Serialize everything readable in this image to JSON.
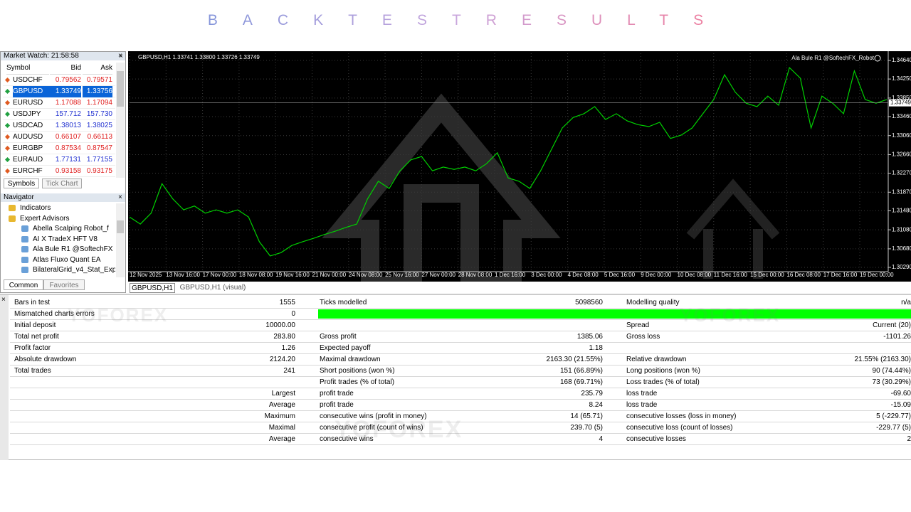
{
  "title": "BACKTESTRESULTS",
  "watermark": "YOFOREX",
  "market_watch": {
    "title": "Market Watch: 21:58:58",
    "columns": [
      "Symbol",
      "Bid",
      "Ask"
    ],
    "selected": 1,
    "rows": [
      {
        "symbol": "USDCHF",
        "bid": "0.79562",
        "ask": "0.79571",
        "color": "#e02020"
      },
      {
        "symbol": "GBPUSD",
        "bid": "1.33749",
        "ask": "1.33756",
        "color": "#2030d0"
      },
      {
        "symbol": "EURUSD",
        "bid": "1.17088",
        "ask": "1.17094",
        "color": "#e02020"
      },
      {
        "symbol": "USDJPY",
        "bid": "157.712",
        "ask": "157.730",
        "color": "#2030d0"
      },
      {
        "symbol": "USDCAD",
        "bid": "1.38013",
        "ask": "1.38025",
        "color": "#2030d0"
      },
      {
        "symbol": "AUDUSD",
        "bid": "0.66107",
        "ask": "0.66113",
        "color": "#e02020"
      },
      {
        "symbol": "EURGBP",
        "bid": "0.87534",
        "ask": "0.87547",
        "color": "#e02020"
      },
      {
        "symbol": "EURAUD",
        "bid": "1.77131",
        "ask": "1.77155",
        "color": "#2030d0"
      },
      {
        "symbol": "EURCHF",
        "bid": "0.93158",
        "ask": "0.93175",
        "color": "#e02020"
      }
    ],
    "tabs": [
      "Symbols",
      "Tick Chart"
    ]
  },
  "navigator": {
    "title": "Navigator",
    "items": [
      {
        "label": "Indicators",
        "level": 1
      },
      {
        "label": "Expert Advisors",
        "level": 1
      },
      {
        "label": "Abella Scalping Robot_f",
        "level": 2
      },
      {
        "label": "AI X TradeX HFT V8",
        "level": 2
      },
      {
        "label": "Ala Bule R1 @SoftechFX",
        "level": 2
      },
      {
        "label": "Atlas Fluxo Quant EA",
        "level": 2
      },
      {
        "label": "BilateralGrid_v4_Stat_Exp",
        "level": 2
      }
    ],
    "tabs": [
      "Common",
      "Favorites"
    ]
  },
  "chart": {
    "type": "line",
    "header": "GBPUSD,H1  1.33741 1.33800 1.33726 1.33749",
    "expert": "Ala Bule R1 @SoftechFX_Robot",
    "color": "#00d000",
    "values": [
      1.3135,
      1.312,
      1.3143,
      1.3205,
      1.3173,
      1.315,
      1.3158,
      1.3143,
      1.315,
      1.3143,
      1.315,
      1.3135,
      1.3083,
      1.3053,
      1.306,
      1.3075,
      1.3083,
      1.309,
      1.3098,
      1.3105,
      1.3113,
      1.312,
      1.3173,
      1.321,
      1.3195,
      1.3232,
      1.3255,
      1.3262,
      1.3232,
      1.324,
      1.3235,
      1.324,
      1.3232,
      1.3247,
      1.327,
      1.3217,
      1.321,
      1.3195,
      1.3232,
      1.3277,
      1.3322,
      1.3344,
      1.3352,
      1.3367,
      1.334,
      1.3352,
      1.3337,
      1.3329,
      1.3325,
      1.3334,
      1.33,
      1.3307,
      1.3322,
      1.3352,
      1.3382,
      1.3434,
      1.3397,
      1.3374,
      1.3367,
      1.3389,
      1.337,
      1.3449,
      1.3427,
      1.3322,
      1.3389,
      1.3374,
      1.3352,
      1.3442,
      1.3382,
      1.3374,
      1.3382
    ],
    "ylim": [
      1.3023,
      1.3479
    ],
    "yticks": [
      {
        "value": 1.3464,
        "label": "1.34640"
      },
      {
        "value": 1.3425,
        "label": "1.34250"
      },
      {
        "value": 1.3385,
        "label": "1.33850"
      },
      {
        "value": 1.3346,
        "label": "1.33460"
      },
      {
        "value": 1.3306,
        "label": "1.33060"
      },
      {
        "value": 1.3266,
        "label": "1.32660"
      },
      {
        "value": 1.3227,
        "label": "1.32270"
      },
      {
        "value": 1.3187,
        "label": "1.31870"
      },
      {
        "value": 1.3148,
        "label": "1.31480"
      },
      {
        "value": 1.3108,
        "label": "1.31080"
      },
      {
        "value": 1.3068,
        "label": "1.30680"
      },
      {
        "value": 1.3029,
        "label": "1.30290"
      }
    ],
    "current_price": {
      "value": 1.33749,
      "label": "1.33749"
    },
    "x_labels": [
      "12 Nov 2025",
      "13 Nov 16:00",
      "17 Nov 00:00",
      "18 Nov 08:00",
      "19 Nov 16:00",
      "21 Nov 00:00",
      "24 Nov 08:00",
      "25 Nov 16:00",
      "27 Nov 00:00",
      "28 Nov 08:00",
      "1 Dec 16:00",
      "3 Dec 00:00",
      "4 Dec 08:00",
      "5 Dec 16:00",
      "9 Dec 00:00",
      "10 Dec 08:00",
      "11 Dec 16:00",
      "15 Dec 00:00",
      "16 Dec 08:00",
      "17 Dec 16:00",
      "19 Dec 00:00"
    ],
    "tabs": [
      "GBPUSD,H1",
      "GBPUSD,H1 (visual)"
    ]
  },
  "results": {
    "quality_color": "#00ff00",
    "rows": [
      [
        "Bars in test",
        "1555",
        "Ticks modelled",
        "5098560",
        "Modelling quality",
        "n/a"
      ],
      [
        "Mismatched charts errors",
        "0",
        null,
        null,
        null,
        null
      ],
      [
        "Initial deposit",
        "10000.00",
        null,
        null,
        "Spread",
        "Current (20)"
      ],
      [
        "Total net profit",
        "283.80",
        "Gross profit",
        "1385.06",
        "Gross loss",
        "-1101.26"
      ],
      [
        "Profit factor",
        "1.26",
        "Expected payoff",
        "1.18",
        null,
        null
      ],
      [
        "Absolute drawdown",
        "2124.20",
        "Maximal drawdown",
        "2163.30 (21.55%)",
        "Relative drawdown",
        "21.55% (2163.30)"
      ],
      [
        "Total trades",
        "241",
        "Short positions (won %)",
        "151 (66.89%)",
        "Long positions (won %)",
        "90 (74.44%)"
      ],
      [
        null,
        null,
        "Profit trades (% of total)",
        "168 (69.71%)",
        "Loss trades (% of total)",
        "73 (30.29%)"
      ],
      [
        null,
        "Largest",
        "profit trade",
        "235.79",
        "loss trade",
        "-69.60"
      ],
      [
        null,
        "Average",
        "profit trade",
        "8.24",
        "loss trade",
        "-15.09"
      ],
      [
        null,
        "Maximum",
        "consecutive wins (profit in money)",
        "14 (65.71)",
        "consecutive losses (loss in money)",
        "5 (-229.77)"
      ],
      [
        null,
        "Maximal",
        "consecutive profit (count of wins)",
        "239.70 (5)",
        "consecutive loss (count of losses)",
        "-229.77 (5)"
      ],
      [
        null,
        "Average",
        "consecutive wins",
        "4",
        "consecutive losses",
        "2"
      ]
    ]
  }
}
